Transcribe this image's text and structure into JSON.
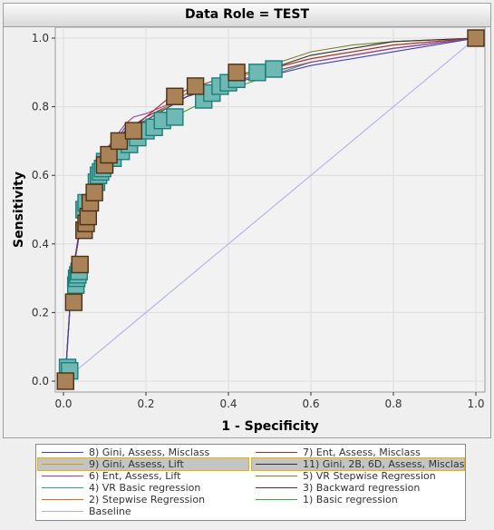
{
  "title": "Data Role = TEST",
  "chart_data": {
    "type": "line",
    "xlabel": "1 - Specificity",
    "ylabel": "Sensitivity",
    "xlim": [
      -0.02,
      1.02
    ],
    "ylim": [
      -0.03,
      1.03
    ],
    "xticks": [
      "0.0",
      "0.2",
      "0.4",
      "0.6",
      "0.8",
      "1.0"
    ],
    "yticks": [
      "0.0",
      "0.2",
      "0.4",
      "0.6",
      "0.8",
      "1.0"
    ],
    "grid": true,
    "legend_position": "bottom",
    "series": [
      {
        "name": "8) Gini, Assess, Misclass",
        "color": "#4040c0",
        "x": [
          0,
          0.005,
          0.02,
          0.04,
          0.06,
          0.08,
          0.1,
          0.15,
          0.2,
          0.3,
          0.4,
          0.5,
          0.6,
          0.8,
          1.0
        ],
        "y": [
          0,
          0.02,
          0.3,
          0.44,
          0.54,
          0.61,
          0.66,
          0.74,
          0.76,
          0.83,
          0.87,
          0.89,
          0.92,
          0.96,
          1.0
        ]
      },
      {
        "name": "7) Ent, Assess, Misclass",
        "color": "#a03030",
        "x": [
          0,
          0.005,
          0.02,
          0.04,
          0.06,
          0.08,
          0.1,
          0.15,
          0.2,
          0.25,
          0.3,
          0.4,
          0.5,
          0.6,
          0.8,
          1.0
        ],
        "y": [
          0,
          0.02,
          0.3,
          0.45,
          0.55,
          0.62,
          0.67,
          0.73,
          0.77,
          0.82,
          0.85,
          0.89,
          0.91,
          0.94,
          0.98,
          1.0
        ]
      },
      {
        "name": "9) Gini, Assess, Lift",
        "color": "#d4a000",
        "x": [
          0,
          0.005,
          0.02,
          0.04,
          0.06,
          0.08,
          0.1,
          0.15,
          0.2,
          0.3,
          0.4,
          0.5,
          0.6,
          0.8,
          1.0
        ],
        "y": [
          0,
          0.02,
          0.29,
          0.44,
          0.54,
          0.61,
          0.66,
          0.72,
          0.76,
          0.84,
          0.88,
          0.91,
          0.94,
          0.98,
          1.0
        ]
      },
      {
        "name": "11) Gini, 2B, 6D, Assess, Misclas",
        "color": "#303030",
        "x": [
          0,
          0.005,
          0.02,
          0.04,
          0.06,
          0.08,
          0.1,
          0.15,
          0.2,
          0.3,
          0.4,
          0.5,
          0.6,
          0.8,
          1.0
        ],
        "y": [
          0,
          0.02,
          0.29,
          0.44,
          0.54,
          0.61,
          0.66,
          0.72,
          0.76,
          0.84,
          0.88,
          0.91,
          0.95,
          0.99,
          1.0
        ]
      },
      {
        "name": "6) Ent, Assess, Lift",
        "color": "#a040a0",
        "x": [
          0,
          0.005,
          0.02,
          0.04,
          0.06,
          0.08,
          0.1,
          0.15,
          0.17,
          0.2,
          0.3,
          0.4,
          0.5,
          0.6,
          0.8,
          1.0
        ],
        "y": [
          0,
          0.02,
          0.3,
          0.45,
          0.55,
          0.62,
          0.67,
          0.75,
          0.77,
          0.78,
          0.83,
          0.87,
          0.9,
          0.93,
          0.97,
          1.0
        ]
      },
      {
        "name": "5) VR Stepwise Regression",
        "color": "#808030",
        "x": [
          0,
          0.005,
          0.02,
          0.04,
          0.06,
          0.08,
          0.1,
          0.15,
          0.2,
          0.3,
          0.4,
          0.5,
          0.6,
          0.7,
          0.8,
          1.0
        ],
        "y": [
          0,
          0.02,
          0.29,
          0.44,
          0.54,
          0.61,
          0.66,
          0.72,
          0.76,
          0.84,
          0.88,
          0.92,
          0.96,
          0.98,
          0.99,
          1.0
        ]
      },
      {
        "name": "4) VR Basic regression",
        "color": "#30a0a0",
        "x": [
          0,
          0.005,
          0.02,
          0.04,
          0.06,
          0.08,
          0.1,
          0.15,
          0.2,
          0.3,
          0.4,
          0.5,
          0.6,
          0.8,
          1.0
        ],
        "y": [
          0,
          0.02,
          0.3,
          0.44,
          0.54,
          0.61,
          0.66,
          0.73,
          0.76,
          0.83,
          0.87,
          0.9,
          0.93,
          0.97,
          1.0
        ]
      },
      {
        "name": "3) Backward regression",
        "color": "#802020",
        "x": [
          0,
          0.005,
          0.02,
          0.04,
          0.06,
          0.08,
          0.1,
          0.15,
          0.2,
          0.3,
          0.4,
          0.5,
          0.6,
          0.8,
          1.0
        ],
        "y": [
          0,
          0.02,
          0.29,
          0.44,
          0.54,
          0.61,
          0.66,
          0.72,
          0.77,
          0.83,
          0.87,
          0.9,
          0.93,
          0.97,
          1.0
        ]
      },
      {
        "name": "2) Stepwise Regression",
        "color": "#d07020",
        "x": [
          0,
          0.005,
          0.02,
          0.04,
          0.06,
          0.08,
          0.1,
          0.15,
          0.2,
          0.3,
          0.4,
          0.5,
          0.6,
          0.8,
          1.0
        ],
        "y": [
          0,
          0.02,
          0.29,
          0.44,
          0.54,
          0.61,
          0.66,
          0.72,
          0.76,
          0.83,
          0.87,
          0.9,
          0.93,
          0.97,
          1.0
        ]
      },
      {
        "name": "1) Basic regression",
        "color": "#40a040",
        "x": [
          0,
          0.005,
          0.02,
          0.04,
          0.06,
          0.08,
          0.1,
          0.15,
          0.2,
          0.3,
          0.4,
          0.5,
          0.6,
          0.8,
          1.0
        ],
        "y": [
          0,
          0.02,
          0.29,
          0.44,
          0.54,
          0.61,
          0.65,
          0.7,
          0.73,
          0.79,
          0.85,
          0.89,
          0.93,
          0.97,
          1.0
        ]
      },
      {
        "name": "Baseline",
        "color": "#b0b0f0",
        "x": [
          0,
          1
        ],
        "y": [
          0,
          1
        ]
      }
    ],
    "markers": [
      {
        "style": "teal",
        "fill": "#6fb8b4",
        "stroke": "#1a7f7a",
        "points": [
          [
            0.01,
            0.04
          ],
          [
            0.015,
            0.03
          ],
          [
            0.03,
            0.28
          ],
          [
            0.032,
            0.3
          ],
          [
            0.035,
            0.31
          ],
          [
            0.038,
            0.32
          ],
          [
            0.05,
            0.5
          ],
          [
            0.055,
            0.52
          ],
          [
            0.08,
            0.58
          ],
          [
            0.085,
            0.6
          ],
          [
            0.09,
            0.61
          ],
          [
            0.095,
            0.62
          ],
          [
            0.1,
            0.64
          ],
          [
            0.12,
            0.65
          ],
          [
            0.14,
            0.67
          ],
          [
            0.16,
            0.69
          ],
          [
            0.18,
            0.71
          ],
          [
            0.2,
            0.73
          ],
          [
            0.22,
            0.74
          ],
          [
            0.24,
            0.76
          ],
          [
            0.27,
            0.77
          ],
          [
            0.34,
            0.82
          ],
          [
            0.36,
            0.84
          ],
          [
            0.38,
            0.86
          ],
          [
            0.4,
            0.87
          ],
          [
            0.42,
            0.88
          ],
          [
            0.47,
            0.9
          ],
          [
            0.51,
            0.91
          ]
        ]
      },
      {
        "style": "brown",
        "fill": "#a98258",
        "stroke": "#4a3016",
        "points": [
          [
            0.005,
            0.0
          ],
          [
            0.025,
            0.23
          ],
          [
            0.04,
            0.34
          ],
          [
            0.05,
            0.44
          ],
          [
            0.055,
            0.46
          ],
          [
            0.06,
            0.48
          ],
          [
            0.065,
            0.52
          ],
          [
            0.075,
            0.55
          ],
          [
            0.1,
            0.63
          ],
          [
            0.11,
            0.66
          ],
          [
            0.135,
            0.7
          ],
          [
            0.17,
            0.73
          ],
          [
            0.27,
            0.83
          ],
          [
            0.32,
            0.86
          ],
          [
            0.42,
            0.9
          ],
          [
            1.0,
            1.0
          ]
        ]
      }
    ]
  },
  "legend": [
    {
      "label": "8) Gini, Assess, Misclass",
      "color": "#4040c0",
      "highlight": false
    },
    {
      "label": "7) Ent, Assess, Misclass",
      "color": "#a03030",
      "highlight": false
    },
    {
      "label": "9) Gini, Assess, Lift",
      "color": "#d4a000",
      "highlight": true
    },
    {
      "label": "11) Gini, 2B, 6D, Assess, Misclas",
      "color": "#303030",
      "highlight": true
    },
    {
      "label": "6) Ent, Assess, Lift",
      "color": "#a040a0",
      "highlight": false
    },
    {
      "label": "5) VR Stepwise Regression",
      "color": "#808030",
      "highlight": false
    },
    {
      "label": "4) VR Basic regression",
      "color": "#30a0a0",
      "highlight": false
    },
    {
      "label": "3) Backward regression",
      "color": "#802020",
      "highlight": false
    },
    {
      "label": "2) Stepwise Regression",
      "color": "#d07020",
      "highlight": false
    },
    {
      "label": "1) Basic regression",
      "color": "#40a040",
      "highlight": false
    },
    {
      "label": "Baseline",
      "color": "#b0b0f0",
      "highlight": false
    }
  ]
}
